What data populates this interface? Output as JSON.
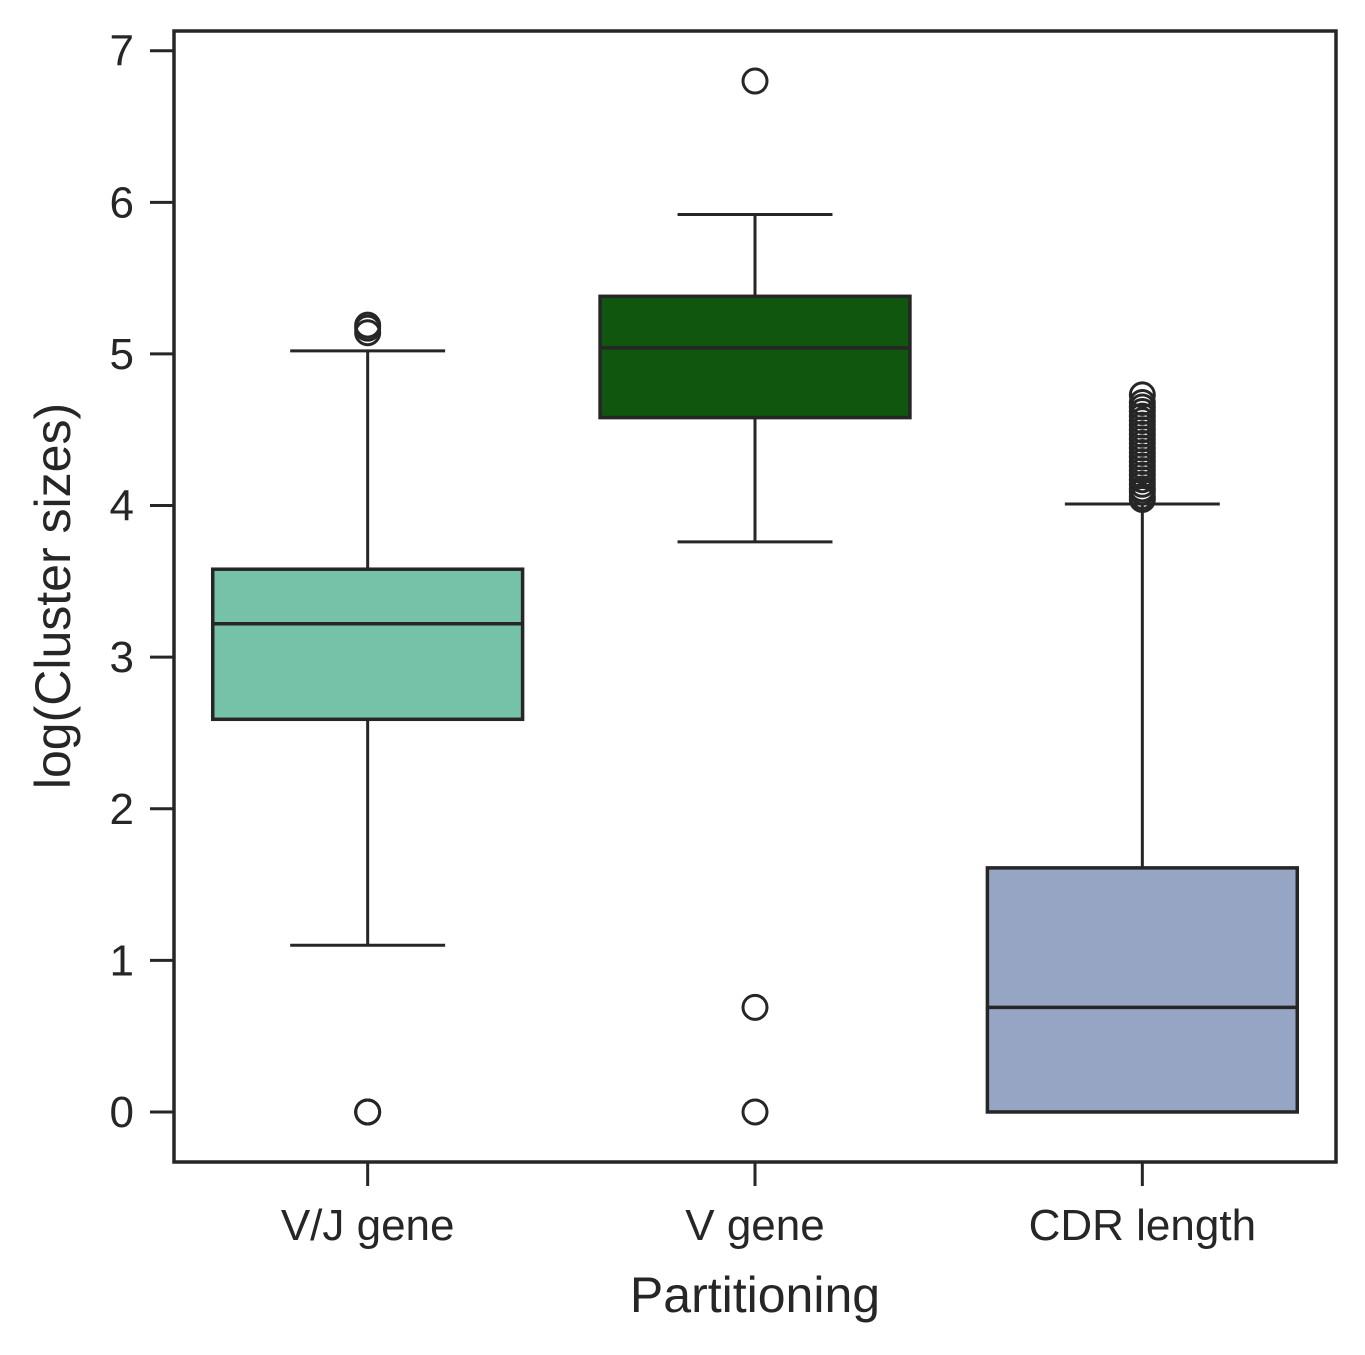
{
  "chart_data": {
    "type": "box",
    "title": "",
    "xlabel": "Partitioning",
    "ylabel": "log(Cluster sizes)",
    "ylim": [
      -0.33,
      7.13
    ],
    "yticks": [
      0,
      1,
      2,
      3,
      4,
      5,
      6,
      7
    ],
    "grid": false,
    "categories": [
      "V/J gene",
      "V gene",
      "CDR length"
    ],
    "boxes": [
      {
        "category": "V/J gene",
        "color": "#76c2a8",
        "whisker_low": 1.1,
        "q1": 2.59,
        "median": 3.22,
        "q3": 3.58,
        "whisker_high": 5.02,
        "outliers": [
          0,
          0,
          0,
          5.14,
          5.17,
          5.19
        ]
      },
      {
        "category": "V gene",
        "color": "#10560e",
        "whisker_low": 3.76,
        "q1": 4.58,
        "median": 5.04,
        "q3": 5.38,
        "whisker_high": 5.92,
        "outliers": [
          0,
          0.69,
          6.8
        ]
      },
      {
        "category": "CDR length",
        "color": "#96a5c3",
        "whisker_low": 0,
        "q1": 0,
        "median": 0.69,
        "q3": 1.61,
        "whisker_high": 4.01,
        "outliers": [
          4.04,
          4.06,
          4.09,
          4.11,
          4.14,
          4.17,
          4.2,
          4.23,
          4.26,
          4.29,
          4.32,
          4.35,
          4.38,
          4.41,
          4.44,
          4.47,
          4.5,
          4.53,
          4.56,
          4.59,
          4.62,
          4.65,
          4.68,
          4.73
        ]
      }
    ]
  }
}
